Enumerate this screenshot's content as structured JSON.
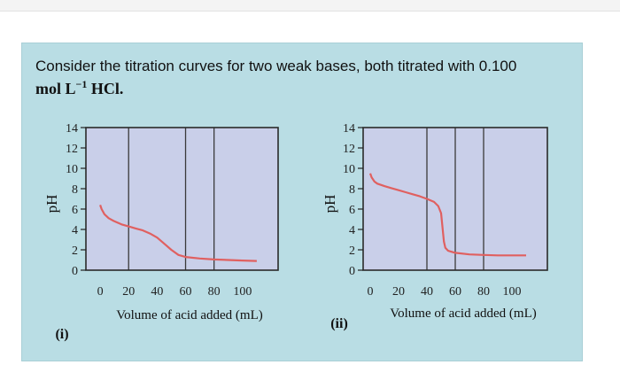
{
  "question": {
    "line1": "Consider the titration curves for two weak bases, both titrated with 0.100",
    "line2_prefix": "mol L",
    "line2_exp": "−1",
    "line2_suffix": " HCl."
  },
  "colors": {
    "card_bg": "#b9dde4",
    "plot_bg": "#c9cfe9",
    "curve": "#e06060",
    "grid": "#3a3a3a"
  },
  "chart_data": [
    {
      "type": "line",
      "panel_label": "(i)",
      "xlabel": "Volume of acid added (mL)",
      "ylabel": "pH",
      "xlim": [
        -10,
        125
      ],
      "ylim": [
        0,
        14
      ],
      "xticks": [
        0,
        20,
        40,
        60,
        80,
        100
      ],
      "yticks": [
        0,
        2,
        4,
        6,
        8,
        10,
        12,
        14
      ],
      "x_gridlines": [
        20,
        60,
        80
      ],
      "series": [
        {
          "x": [
            0,
            1,
            3,
            6,
            10,
            15,
            20,
            25,
            30,
            35,
            40,
            45,
            50,
            55,
            60,
            70,
            80,
            90,
            100,
            110
          ],
          "y": [
            6.4,
            6.0,
            5.5,
            5.1,
            4.8,
            4.5,
            4.3,
            4.1,
            3.9,
            3.6,
            3.2,
            2.6,
            2.0,
            1.5,
            1.3,
            1.15,
            1.05,
            1.0,
            0.95,
            0.9
          ]
        }
      ]
    },
    {
      "type": "line",
      "panel_label": "(ii)",
      "xlabel": "Volume of acid added (mL)",
      "ylabel": "pH",
      "xlim": [
        -5,
        125
      ],
      "ylim": [
        0,
        14
      ],
      "xticks": [
        0,
        20,
        40,
        60,
        80,
        100
      ],
      "yticks": [
        0,
        2,
        4,
        6,
        8,
        10,
        12,
        14
      ],
      "x_gridlines": [
        40,
        60,
        80
      ],
      "series": [
        {
          "x": [
            0,
            1,
            3,
            5,
            10,
            15,
            20,
            25,
            30,
            35,
            40,
            45,
            48,
            50,
            51,
            52,
            53,
            55,
            60,
            70,
            80,
            90,
            100,
            110
          ],
          "y": [
            9.5,
            9.1,
            8.7,
            8.5,
            8.25,
            8.05,
            7.85,
            7.65,
            7.45,
            7.25,
            7.0,
            6.7,
            6.3,
            5.6,
            4.2,
            2.8,
            2.2,
            1.9,
            1.7,
            1.55,
            1.5,
            1.45,
            1.45,
            1.45
          ]
        }
      ]
    }
  ]
}
